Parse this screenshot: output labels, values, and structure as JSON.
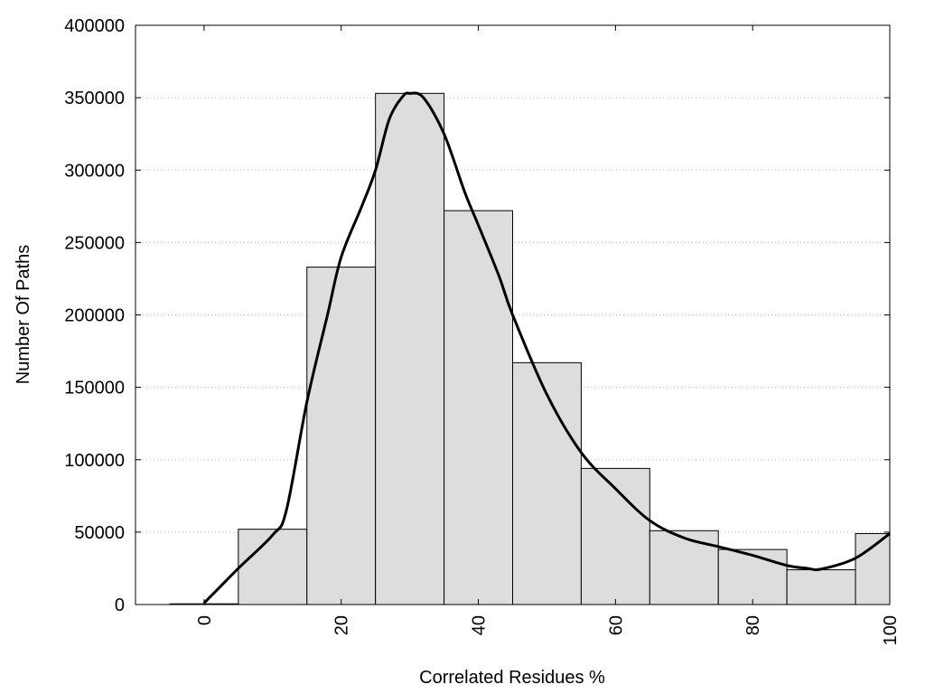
{
  "chart_data": {
    "type": "bar",
    "title": "",
    "xlabel": "Correlated Residues %",
    "ylabel": "Number Of Paths",
    "xlim": [
      -10,
      100
    ],
    "ylim": [
      0,
      400000
    ],
    "bar_width": 10,
    "x_ticks": [
      0,
      20,
      40,
      60,
      80,
      100
    ],
    "y_ticks": [
      0,
      50000,
      100000,
      150000,
      200000,
      250000,
      300000,
      350000,
      400000
    ],
    "grid": "horizontal dotted",
    "bars": {
      "x": [
        0,
        10,
        20,
        30,
        40,
        50,
        60,
        70,
        80,
        90,
        100
      ],
      "values": [
        500,
        52000,
        233000,
        353000,
        272000,
        167000,
        94000,
        51000,
        38000,
        24000,
        49000
      ]
    },
    "curve": {
      "x": [
        0,
        5,
        10,
        12,
        15,
        18,
        20,
        23,
        25,
        27,
        29,
        30,
        32,
        35,
        38,
        40,
        43,
        45,
        50,
        55,
        60,
        65,
        70,
        75,
        80,
        85,
        88,
        90,
        95,
        100
      ],
      "values": [
        1000,
        25000,
        48000,
        65000,
        140000,
        200000,
        240000,
        275000,
        300000,
        335000,
        351000,
        353000,
        350000,
        325000,
        285000,
        262000,
        227000,
        200000,
        145000,
        105000,
        80000,
        58000,
        46000,
        40000,
        34000,
        27000,
        25000,
        24500,
        32000,
        49000
      ]
    },
    "colors": {
      "bar_fill": "#dddddd",
      "bar_stroke": "#000000",
      "curve": "#000000",
      "grid": "#bbbbbb"
    }
  }
}
